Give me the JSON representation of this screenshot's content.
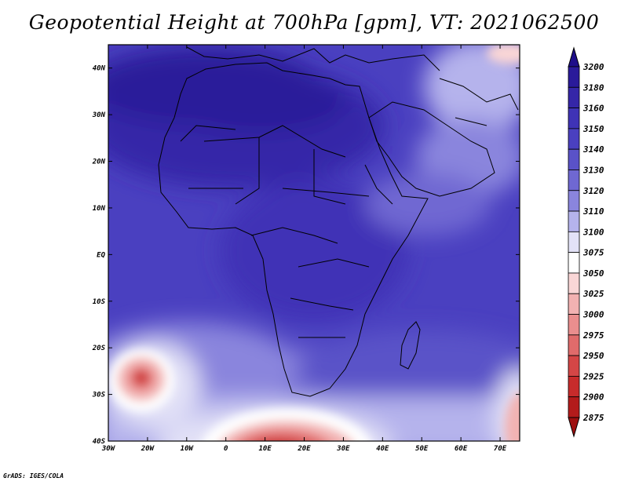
{
  "title": "Geopotential Height at 700hPa [gpm], VT: 2021062500",
  "credit": "GrADS: IGES/COLA",
  "map": {
    "lon_range": [
      -30,
      75
    ],
    "lat_range": [
      -40,
      45
    ],
    "lon_ticks": [
      "30W",
      "20W",
      "10W",
      "0",
      "10E",
      "20E",
      "30E",
      "40E",
      "50E",
      "60E",
      "70E"
    ],
    "lon_tick_values": [
      -30,
      -20,
      -10,
      0,
      10,
      20,
      30,
      40,
      50,
      60,
      70
    ],
    "lat_ticks": [
      "40N",
      "30N",
      "20N",
      "10N",
      "EQ",
      "10S",
      "20S",
      "30S",
      "40S"
    ],
    "lat_tick_values": [
      40,
      30,
      20,
      10,
      0,
      -10,
      -20,
      -30,
      -40
    ]
  },
  "colorbar": {
    "levels": [
      "3200",
      "3180",
      "3160",
      "3150",
      "3140",
      "3130",
      "3120",
      "3110",
      "3100",
      "3075",
      "3050",
      "3025",
      "3000",
      "2975",
      "2950",
      "2925",
      "2900",
      "2875"
    ],
    "colors": [
      "#1e0e8a",
      "#2a1a9a",
      "#3526a8",
      "#3f33b6",
      "#4a40c0",
      "#5a52c8",
      "#6f68d2",
      "#8a85dd",
      "#b5b3ec",
      "#e3e2f7",
      "#ffffff",
      "#f9d6d6",
      "#f2b2b2",
      "#ea8e8e",
      "#e06b6b",
      "#d44646",
      "#c72b2b",
      "#b31b1b",
      "#9e1010"
    ]
  }
}
